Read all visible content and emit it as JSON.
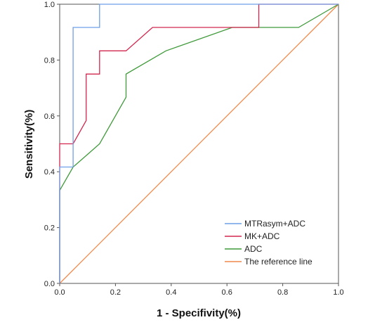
{
  "chart_data": {
    "type": "line",
    "title": "",
    "xlabel": "1 - Specifivity(%)",
    "ylabel": "Sensitivity(%)",
    "xlim": [
      0,
      1
    ],
    "ylim": [
      0,
      1
    ],
    "x_ticks": [
      "0.0",
      "0.2",
      "0.4",
      "0.6",
      "0.8",
      "1.0"
    ],
    "y_ticks": [
      "0.0",
      "0.2",
      "0.4",
      "0.6",
      "0.8",
      "1.0"
    ],
    "grid": false,
    "legend_position": "bottom-right",
    "series": [
      {
        "name": "MTRasym+ADC",
        "color": "#6f9fe6",
        "x": [
          0,
          0,
          0.048,
          0.048,
          0.143,
          0.143,
          1.0
        ],
        "y": [
          0,
          0.417,
          0.417,
          0.917,
          0.917,
          1.0,
          1.0
        ]
      },
      {
        "name": "MK+ADC",
        "color": "#d1274f",
        "x": [
          0,
          0,
          0.048,
          0.095,
          0.095,
          0.143,
          0.143,
          0.238,
          0.333,
          0.714,
          0.714,
          1.0
        ],
        "y": [
          0,
          0.5,
          0.5,
          0.583,
          0.75,
          0.75,
          0.833,
          0.833,
          0.917,
          0.917,
          1.0,
          1.0
        ]
      },
      {
        "name": "ADC",
        "color": "#3f9a3a",
        "x": [
          0,
          0,
          0.048,
          0.143,
          0.238,
          0.238,
          0.381,
          0.619,
          0.857,
          1.0
        ],
        "y": [
          0,
          0.333,
          0.417,
          0.5,
          0.667,
          0.75,
          0.833,
          0.917,
          0.917,
          1.0
        ]
      },
      {
        "name": "The  reference line",
        "color": "#ef8a4b",
        "x": [
          0,
          1
        ],
        "y": [
          0,
          1
        ]
      }
    ]
  }
}
